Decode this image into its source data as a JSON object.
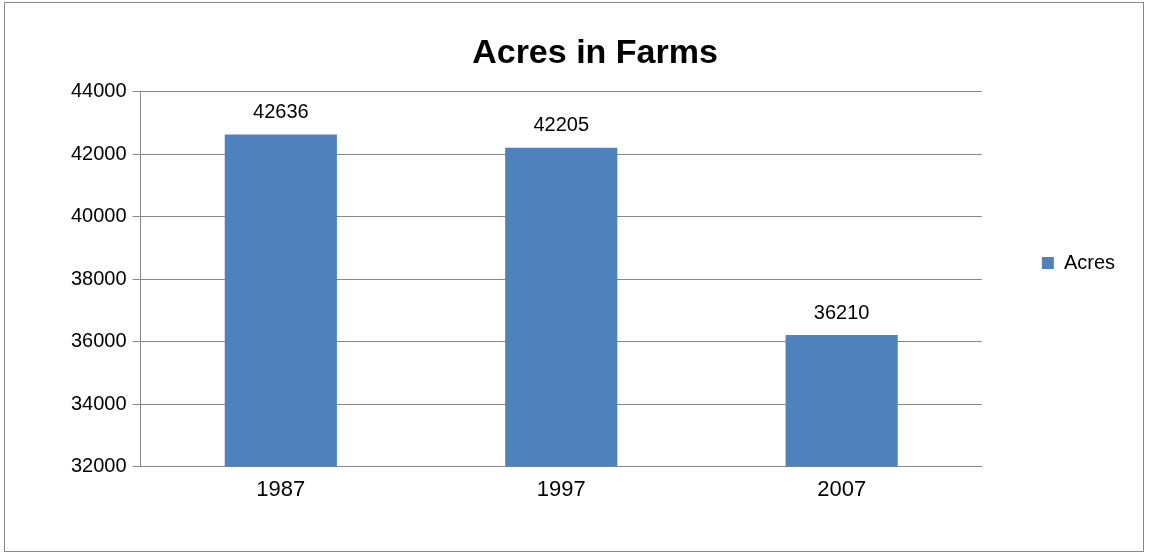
{
  "chart_data": {
    "type": "bar",
    "title": "Acres in Farms",
    "categories": [
      "1987",
      "1997",
      "2007"
    ],
    "series": [
      {
        "name": "Acres",
        "color": "#4f81bd",
        "values": [
          42636,
          42205,
          36210
        ]
      }
    ],
    "ylim": [
      32000,
      44000
    ],
    "yticks": [
      32000,
      34000,
      36000,
      38000,
      40000,
      42000,
      44000
    ],
    "grid": "y",
    "legend": "right",
    "data_labels": true
  }
}
